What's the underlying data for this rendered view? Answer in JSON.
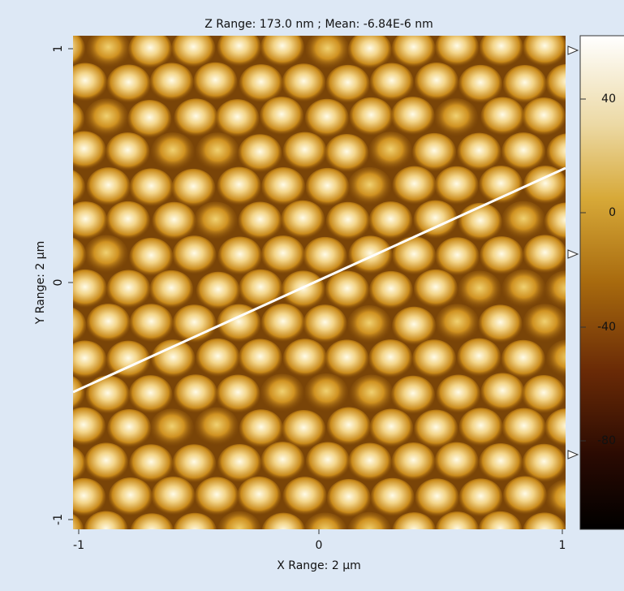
{
  "title": "Z Range:  173.0 nm ; Mean: -6.84E-6 nm",
  "x_axis": {
    "label": "X Range: 2 µm",
    "ticks": [
      -1,
      0,
      1
    ]
  },
  "y_axis": {
    "label": "Y Range: 2 µm",
    "ticks": [
      1,
      0,
      -1
    ]
  },
  "colorbar": {
    "ticks": [
      40,
      0,
      -40,
      -80
    ]
  }
}
